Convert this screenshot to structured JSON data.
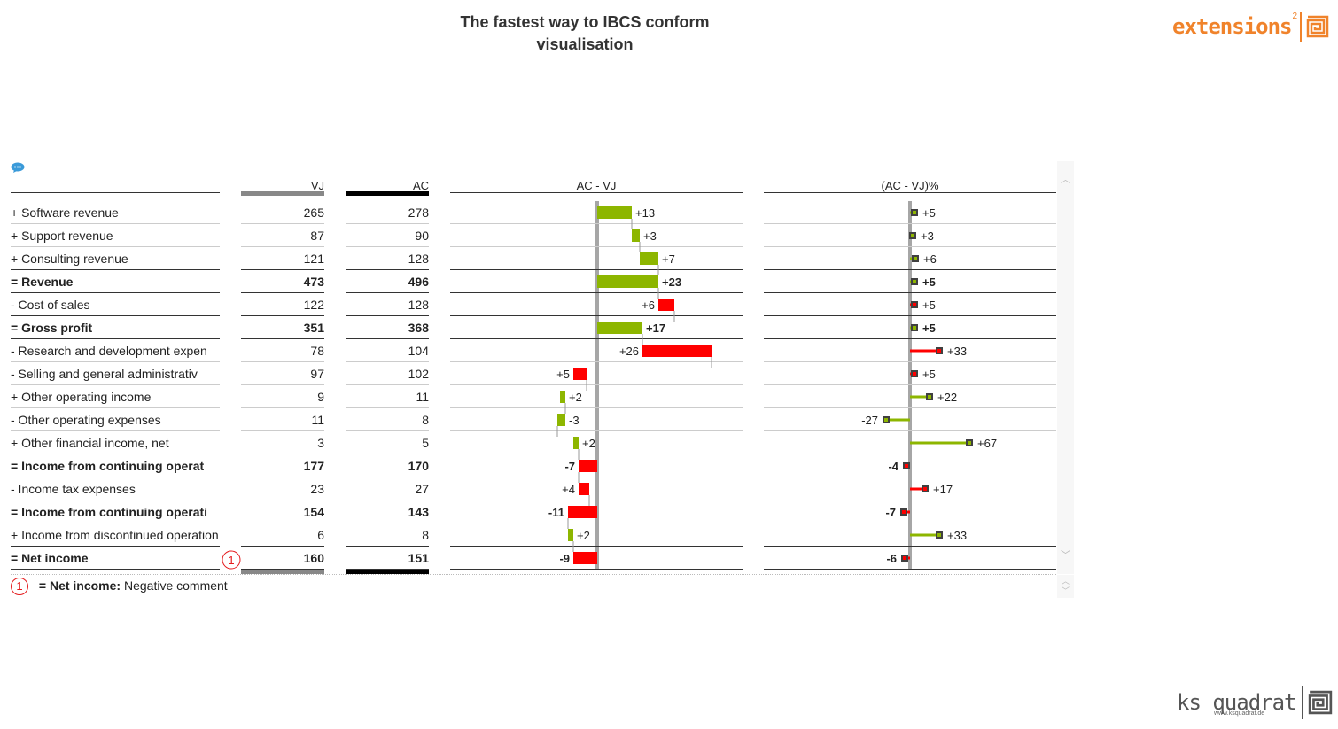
{
  "title_line1": "The fastest  way to IBCS conform",
  "title_line2": "visualisation",
  "logo_extensions": "extensions",
  "logo_extensions_sup": "2",
  "logo_ks": "ks quadrat",
  "logo_ks_url": "www.ksquadrat.de",
  "headers": {
    "vj": "VJ",
    "ac": "AC",
    "delta": "AC - VJ",
    "delta_pct": "(AC - VJ)%"
  },
  "colors": {
    "positive": "#8db600",
    "negative": "#ff0000",
    "vj_bar": "#888888",
    "ac_bar": "#000000",
    "axis": "#a6a6a6",
    "marker": "#404040"
  },
  "rows": [
    {
      "label": "+ Software revenue",
      "vj": "265",
      "ac": "278",
      "delta_label": "+13",
      "pct_label": "+5",
      "bold": false,
      "delta": 13,
      "pct": 5,
      "cum_start": 0,
      "good": true
    },
    {
      "label": "+ Support revenue",
      "vj": "87",
      "ac": "90",
      "delta_label": "+3",
      "pct_label": "+3",
      "bold": false,
      "delta": 3,
      "pct": 3,
      "cum_start": 13,
      "good": true
    },
    {
      "label": "+ Consulting revenue",
      "vj": "121",
      "ac": "128",
      "delta_label": "+7",
      "pct_label": "+6",
      "bold": false,
      "delta": 7,
      "pct": 6,
      "cum_start": 16,
      "good": true
    },
    {
      "label": "= Revenue",
      "vj": "473",
      "ac": "496",
      "delta_label": "+23",
      "pct_label": "+5",
      "bold": true,
      "delta": 23,
      "pct": 5,
      "cum_start": 0,
      "good": true
    },
    {
      "label": "- Cost of sales",
      "vj": "122",
      "ac": "128",
      "delta_label": "+6",
      "pct_label": "+5",
      "bold": false,
      "delta": 6,
      "pct": 5,
      "cum_start": 23,
      "good": false
    },
    {
      "label": "= Gross profit",
      "vj": "351",
      "ac": "368",
      "delta_label": "+17",
      "pct_label": "+5",
      "bold": true,
      "delta": 17,
      "pct": 5,
      "cum_start": 0,
      "good": true
    },
    {
      "label": "- Research and development expen",
      "vj": "78",
      "ac": "104",
      "delta_label": "+26",
      "pct_label": "+33",
      "bold": false,
      "delta": 26,
      "pct": 33,
      "cum_start": 17,
      "good": false
    },
    {
      "label": "- Selling and general administrativ",
      "vj": "97",
      "ac": "102",
      "delta_label": "+5",
      "pct_label": "+5",
      "bold": false,
      "delta": 5,
      "pct": 5,
      "cum_start": -9,
      "good": false
    },
    {
      "label": "+ Other operating income",
      "vj": "9",
      "ac": "11",
      "delta_label": "+2",
      "pct_label": "+22",
      "bold": false,
      "delta": 2,
      "pct": 22,
      "cum_start": -14,
      "good": true
    },
    {
      "label": "- Other operating expenses",
      "vj": "11",
      "ac": "8",
      "delta_label": "-3",
      "pct_label": "-27",
      "bold": false,
      "delta": -3,
      "pct": -27,
      "cum_start": -12,
      "good": true
    },
    {
      "label": "+ Other financial income, net",
      "vj": "3",
      "ac": "5",
      "delta_label": "+2",
      "pct_label": "+67",
      "bold": false,
      "delta": 2,
      "pct": 67,
      "cum_start": -9,
      "good": true
    },
    {
      "label": "= Income from continuing operat",
      "vj": "177",
      "ac": "170",
      "delta_label": "-7",
      "pct_label": "-4",
      "bold": true,
      "delta": -7,
      "pct": -4,
      "cum_start": 0,
      "good": false
    },
    {
      "label": "- Income tax expenses",
      "vj": "23",
      "ac": "27",
      "delta_label": "+4",
      "pct_label": "+17",
      "bold": false,
      "delta": 4,
      "pct": 17,
      "cum_start": -7,
      "good": false
    },
    {
      "label": "= Income from continuing operati",
      "vj": "154",
      "ac": "143",
      "delta_label": "-11",
      "pct_label": "-7",
      "bold": true,
      "delta": -11,
      "pct": -7,
      "cum_start": 0,
      "good": false
    },
    {
      "label": "+ Income from discontinued operation",
      "vj": "6",
      "ac": "8",
      "delta_label": "+2",
      "pct_label": "+33",
      "bold": false,
      "delta": 2,
      "pct": 33,
      "cum_start": -11,
      "good": true
    },
    {
      "label": "= Net income",
      "vj": "160",
      "ac": "151",
      "delta_label": "-9",
      "pct_label": "-6",
      "bold": true,
      "delta": -9,
      "pct": -6,
      "cum_start": 0,
      "good": false
    }
  ],
  "comment_marker": "1",
  "footnote": {
    "marker": "1",
    "label": "= Net income:",
    "text": "Negative comment"
  },
  "chart_data": [
    {
      "type": "bar",
      "title": "AC - VJ",
      "categories": [
        "+ Software revenue",
        "+ Support revenue",
        "+ Consulting revenue",
        "= Revenue",
        "- Cost of sales",
        "= Gross profit",
        "- Research and development expen",
        "- Selling and general administrativ",
        "+ Other operating income",
        "- Other operating expenses",
        "+ Other financial income, net",
        "= Income from continuing operat",
        "- Income tax expenses",
        "= Income from continuing operati",
        "+ Income from discontinued operation",
        "= Net income"
      ],
      "values": [
        13,
        3,
        7,
        23,
        6,
        17,
        26,
        5,
        2,
        -3,
        2,
        -7,
        4,
        -11,
        2,
        -9
      ]
    },
    {
      "type": "bar",
      "title": "(AC - VJ)%",
      "categories": [
        "+ Software revenue",
        "+ Support revenue",
        "+ Consulting revenue",
        "= Revenue",
        "- Cost of sales",
        "= Gross profit",
        "- Research and development expen",
        "- Selling and general administrativ",
        "+ Other operating income",
        "- Other operating expenses",
        "+ Other financial income, net",
        "= Income from continuing operat",
        "- Income tax expenses",
        "= Income from continuing operati",
        "+ Income from discontinued operation",
        "= Net income"
      ],
      "values": [
        5,
        3,
        6,
        5,
        5,
        5,
        33,
        5,
        22,
        -27,
        67,
        -4,
        17,
        -7,
        33,
        -6
      ]
    }
  ]
}
